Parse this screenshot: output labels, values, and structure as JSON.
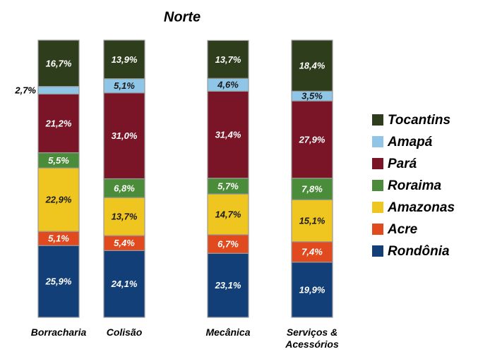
{
  "chart_data": {
    "type": "stacked_bar",
    "title": "Norte",
    "categories": [
      "Borracharia",
      "Colisão",
      "Mecânica",
      "Serviços & Acessórios"
    ],
    "ylim": [
      0,
      100
    ],
    "series": [
      {
        "name": "Rondônia",
        "color": "#123f78",
        "values": [
          25.9,
          24.1,
          23.1,
          19.9
        ],
        "value_labels": [
          "25,9%",
          "24,1%",
          "23,1%",
          "19,9%"
        ]
      },
      {
        "name": "Acre",
        "color": "#e04a1e",
        "values": [
          5.1,
          5.4,
          6.7,
          7.4
        ],
        "value_labels": [
          "5,1%",
          "5,4%",
          "6,7%",
          "7,4%"
        ]
      },
      {
        "name": "Amazonas",
        "color": "#efc61f",
        "values": [
          22.9,
          13.7,
          14.7,
          15.1
        ],
        "value_labels": [
          "22,9%",
          "13,7%",
          "14,7%",
          "15,1%"
        ]
      },
      {
        "name": "Roraima",
        "color": "#4b8c3a",
        "values": [
          5.5,
          6.8,
          5.7,
          7.8
        ],
        "value_labels": [
          "5,5%",
          "6,8%",
          "5,7%",
          "7,8%"
        ]
      },
      {
        "name": "Pará",
        "color": "#7a1427",
        "values": [
          21.2,
          31.0,
          31.4,
          27.9
        ],
        "value_labels": [
          "21,2%",
          "31,0%",
          "31,4%",
          "27,9%"
        ]
      },
      {
        "name": "Amapá",
        "color": "#8fc5e6",
        "values": [
          2.7,
          5.1,
          4.6,
          3.5
        ],
        "value_labels": [
          "2,7%",
          "5,1%",
          "4,6%",
          "3,5%"
        ]
      },
      {
        "name": "Tocantins",
        "color": "#2e3d1b",
        "values": [
          16.7,
          13.9,
          13.7,
          18.4
        ],
        "value_labels": [
          "16,7%",
          "13,9%",
          "13,7%",
          "18,4%"
        ]
      }
    ]
  }
}
